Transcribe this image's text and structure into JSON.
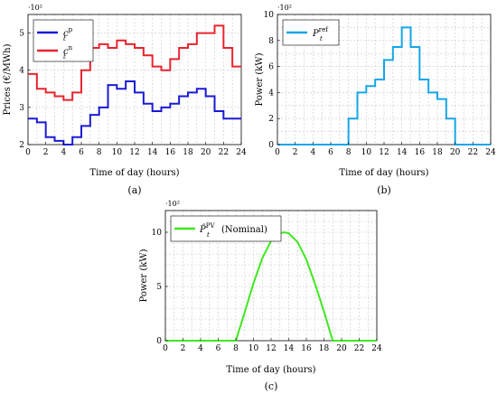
{
  "chart_data": [
    {
      "type": "line",
      "step": true,
      "xlabel": "Time of day (hours)",
      "ylabel": "Prices (€/MWh)",
      "y_multiplier": "·10²",
      "caption": "(a)",
      "xlim": [
        0,
        24
      ],
      "ylim": [
        2,
        5.5
      ],
      "xticks": [
        0,
        2,
        4,
        6,
        8,
        10,
        12,
        14,
        16,
        18,
        20,
        22,
        24
      ],
      "yticks": [
        2,
        3,
        4,
        5
      ],
      "legend_position": "top-left",
      "series": [
        {
          "name": "c_t^p",
          "color": "#1a1ad6",
          "values": [
            2.7,
            2.6,
            2.2,
            2.1,
            2.0,
            2.2,
            2.5,
            2.8,
            3.0,
            3.6,
            3.5,
            3.7,
            3.4,
            3.1,
            2.9,
            3.0,
            3.1,
            3.3,
            3.4,
            3.5,
            3.3,
            2.9,
            2.7,
            2.7
          ]
        },
        {
          "name": "c_t^n",
          "color": "#e8242e",
          "values": [
            3.9,
            3.5,
            3.4,
            3.3,
            3.2,
            3.4,
            4.0,
            4.6,
            4.7,
            4.6,
            4.8,
            4.7,
            4.6,
            4.4,
            4.1,
            4.0,
            4.3,
            4.6,
            4.7,
            5.0,
            5.0,
            5.2,
            4.6,
            4.1
          ]
        }
      ]
    },
    {
      "type": "line",
      "step": true,
      "xlabel": "Time of day (hours)",
      "ylabel": "Power (kW)",
      "y_multiplier": "·10²",
      "caption": "(b)",
      "xlim": [
        0,
        24
      ],
      "ylim": [
        0,
        10
      ],
      "xticks": [
        0,
        2,
        4,
        6,
        8,
        10,
        12,
        14,
        16,
        18,
        20,
        22,
        24
      ],
      "yticks": [
        0,
        2,
        4,
        6,
        8,
        10
      ],
      "legend_position": "top-left",
      "series": [
        {
          "name": "P_t^ref",
          "color": "#16a6e8",
          "values": [
            0,
            0,
            0,
            0,
            0,
            0,
            0,
            0,
            2,
            4,
            4.5,
            5,
            6.5,
            7.5,
            9,
            7.5,
            5,
            4,
            3.5,
            2,
            0,
            0,
            0,
            0
          ]
        }
      ]
    },
    {
      "type": "line",
      "xlabel": "Time of day (hours)",
      "ylabel": "Power (kW)",
      "y_multiplier": "·10²",
      "caption": "(c)",
      "xlim": [
        0,
        24
      ],
      "ylim": [
        0,
        12
      ],
      "xticks": [
        0,
        2,
        4,
        6,
        8,
        10,
        12,
        14,
        16,
        18,
        20,
        22,
        24
      ],
      "yticks": [
        0,
        5,
        10
      ],
      "legend_position": "top-left",
      "series": [
        {
          "name": "P̂_t^PV (Nominal)",
          "color": "#3ee820",
          "x": [
            0,
            8,
            9,
            10,
            11,
            12,
            13,
            13.5,
            14,
            15,
            16,
            17,
            18,
            19,
            24
          ],
          "values": [
            0,
            0,
            2.6,
            5.3,
            7.6,
            9.2,
            9.9,
            10,
            9.9,
            9.1,
            7.5,
            5.2,
            2.7,
            0,
            0
          ]
        }
      ]
    }
  ]
}
